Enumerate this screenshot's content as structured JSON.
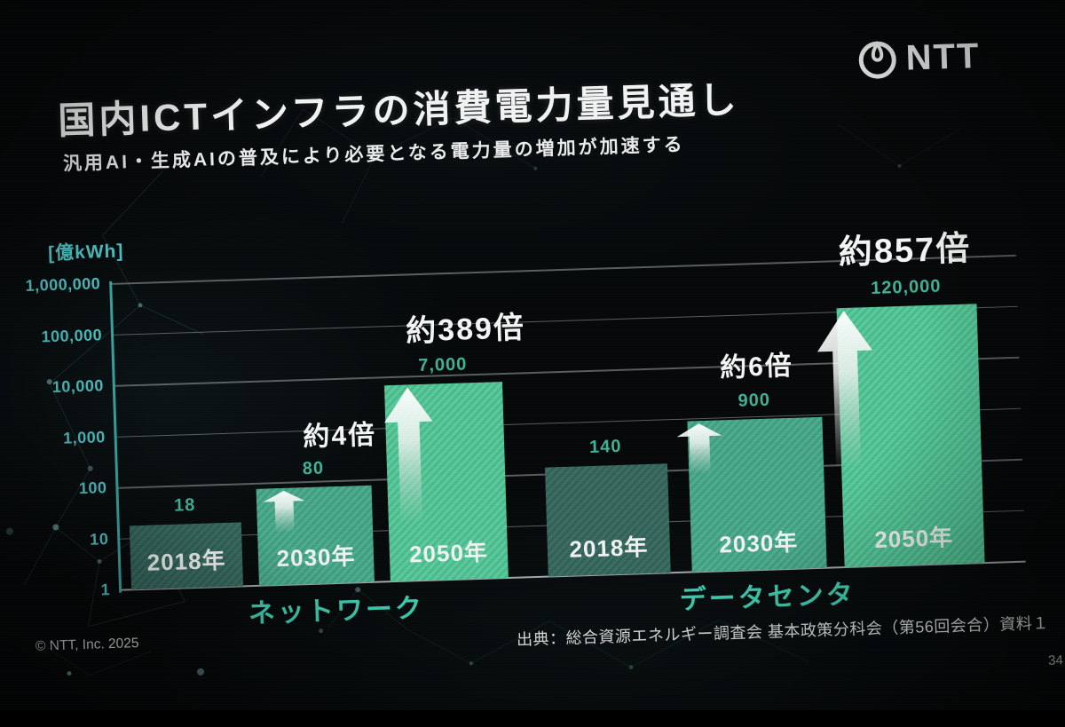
{
  "header": {
    "title": "国内ICTインフラの消費電力量見通し",
    "subtitle": "汎用AI・生成AIの普及により必要となる電力量の増加が加速する"
  },
  "brand": {
    "name": "NTT"
  },
  "chart_data": {
    "type": "bar",
    "title": "国内ICTインフラの消費電力量見通し",
    "unit_label": "[億kWh]",
    "y_axis": {
      "scale": "log",
      "min": 1,
      "max": 1000000,
      "ticks": [
        "1,000,000",
        "100,000",
        "10,000",
        "1,000",
        "100",
        "10",
        "1"
      ]
    },
    "groups": [
      {
        "label": "ネットワーク",
        "bars": [
          {
            "year": "2018年",
            "value": 18,
            "display": "18"
          },
          {
            "year": "2030年",
            "value": 80,
            "display": "80",
            "multiplier": "約4倍"
          },
          {
            "year": "2050年",
            "value": 7000,
            "display": "7,000",
            "multiplier": "約389倍"
          }
        ]
      },
      {
        "label": "データセンタ",
        "bars": [
          {
            "year": "2018年",
            "value": 140,
            "display": "140"
          },
          {
            "year": "2030年",
            "value": 900,
            "display": "900",
            "multiplier": "約6倍"
          },
          {
            "year": "2050年",
            "value": 120000,
            "display": "120,000",
            "multiplier": "約857倍"
          }
        ]
      }
    ],
    "colors": {
      "bar_2018": "#35685d",
      "bar_2030": "#48ab8b",
      "bar_2050": "#54ca99",
      "axis": "#3aa8a4",
      "tick_label": "#4fc7c9",
      "value_label": "#3fb397",
      "group_label": "#3ecdb0",
      "annotation": "#f4f6f5"
    }
  },
  "footer": {
    "copyright": "© NTT, Inc.  2025",
    "source": "出典：総合資源エネルギー調査会 基本政策分科会（第56回会合）資料１",
    "page": "34"
  }
}
